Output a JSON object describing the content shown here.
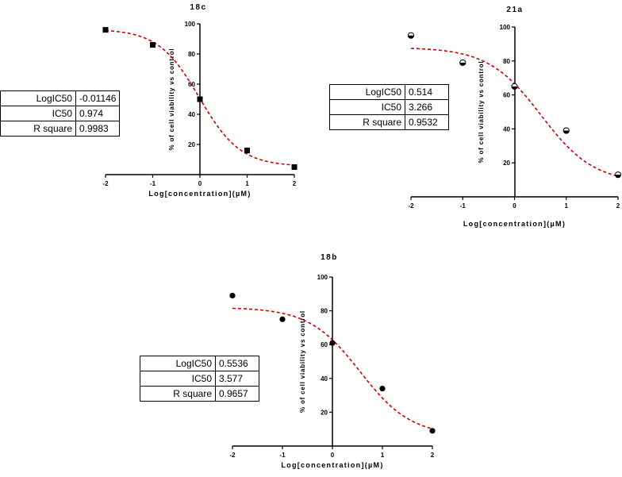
{
  "chart_data": [
    {
      "type": "scatter",
      "title": "18c",
      "xlabel": "Log[concentration](µM)",
      "ylabel": "% of cell viability vs control",
      "xlim": [
        -2,
        2
      ],
      "ylim": [
        0,
        100
      ],
      "xticks": [
        -2,
        -1,
        0,
        1,
        2
      ],
      "yticks": [
        20,
        40,
        60,
        80,
        100
      ],
      "marker": "square",
      "series": [
        {
          "x": [
            -2,
            -1,
            0,
            1,
            2
          ],
          "y": [
            96,
            86,
            50,
            16,
            5
          ]
        }
      ],
      "fit": {
        "top": 96.5,
        "bottom": 5.5,
        "logIC50": -0.01146,
        "hill": -1.0,
        "color": "#cc0000",
        "style": "dashed"
      },
      "stats": {
        "rows": [
          {
            "label": "LogIC50",
            "value": "-0.01146"
          },
          {
            "label": "IC50",
            "value": "0.974"
          },
          {
            "label": "R square",
            "value": "0.9983"
          }
        ]
      }
    },
    {
      "type": "scatter",
      "title": "21a",
      "xlabel": "Log[concentration](µM)",
      "ylabel": "% of cell viability vs control",
      "xlim": [
        -2,
        2
      ],
      "ylim": [
        0,
        100
      ],
      "xticks": [
        -2,
        -1,
        0,
        1,
        2
      ],
      "yticks": [
        20,
        40,
        60,
        80,
        100
      ],
      "marker": "half-circle",
      "series": [
        {
          "x": [
            -2,
            -1,
            0,
            1,
            2
          ],
          "y": [
            95,
            79,
            65,
            39,
            13
          ]
        }
      ],
      "fit": {
        "top": 88,
        "bottom": 8,
        "logIC50": 0.514,
        "hill": -0.85,
        "color": "#cc0000",
        "style": "dashed"
      },
      "stats": {
        "rows": [
          {
            "label": "LogIC50",
            "value": "0.514"
          },
          {
            "label": "IC50",
            "value": "3.266"
          },
          {
            "label": "R square",
            "value": "0.9532"
          }
        ]
      }
    },
    {
      "type": "scatter",
      "title": "18b",
      "xlabel": "Log[concentration](µM)",
      "ylabel": "% of cell viability vs control",
      "xlim": [
        -2,
        2
      ],
      "ylim": [
        0,
        100
      ],
      "xticks": [
        -2,
        -1,
        0,
        1,
        2
      ],
      "yticks": [
        20,
        40,
        60,
        80,
        100
      ],
      "marker": "circle",
      "series": [
        {
          "x": [
            -2,
            -1,
            0,
            1,
            2
          ],
          "y": [
            89,
            75,
            61,
            34,
            9
          ]
        }
      ],
      "fit": {
        "top": 82,
        "bottom": 6,
        "logIC50": 0.5536,
        "hill": -0.85,
        "color": "#cc0000",
        "style": "dashed"
      },
      "stats": {
        "rows": [
          {
            "label": "LogIC50",
            "value": "0.5536"
          },
          {
            "label": "IC50",
            "value": "3.577"
          },
          {
            "label": "R square",
            "value": "0.9657"
          }
        ]
      }
    }
  ]
}
